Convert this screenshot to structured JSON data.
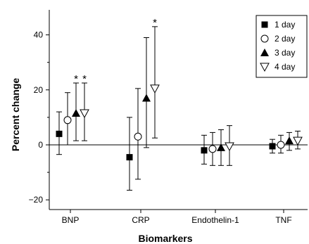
{
  "chart_data": {
    "type": "scatter",
    "xlabel": "Biomarkers",
    "ylabel": "Percent change",
    "ylim": [
      -25,
      48
    ],
    "yticks": [
      "−20",
      "0",
      "20",
      "40"
    ],
    "grid": false,
    "legend_position": "top-right",
    "categories": [
      "BNP",
      "CRP",
      "Endothelin-1",
      "TNF"
    ],
    "series": [
      {
        "name": "1 day",
        "marker": "filled-square",
        "values": [
          4,
          -4.5,
          -2,
          -0.5
        ],
        "lower": [
          -3.5,
          -16.5,
          -7,
          -3
        ],
        "upper": [
          12,
          10,
          3.5,
          2
        ],
        "annotations": [
          "",
          "",
          "",
          ""
        ]
      },
      {
        "name": "2 day",
        "marker": "open-circle",
        "values": [
          9,
          3,
          -1.5,
          0
        ],
        "lower": [
          0,
          -12.5,
          -7.5,
          -3
        ],
        "upper": [
          19,
          20.5,
          4.5,
          3.5
        ],
        "annotations": [
          "",
          "",
          "",
          ""
        ]
      },
      {
        "name": "3 day",
        "marker": "filled-triangle-up",
        "values": [
          11.5,
          17,
          -1,
          1.5
        ],
        "lower": [
          1.5,
          -1,
          -7.5,
          -2
        ],
        "upper": [
          22.5,
          39,
          5.5,
          4.5
        ],
        "annotations": [
          "*",
          "",
          "",
          ""
        ]
      },
      {
        "name": "4 day",
        "marker": "open-triangle-down",
        "values": [
          11.5,
          20.5,
          -0.5,
          1.5
        ],
        "lower": [
          1.5,
          2.5,
          -7.5,
          -1.5
        ],
        "upper": [
          22.5,
          43,
          7,
          5
        ],
        "annotations": [
          "*",
          "*",
          "",
          ""
        ]
      }
    ]
  }
}
